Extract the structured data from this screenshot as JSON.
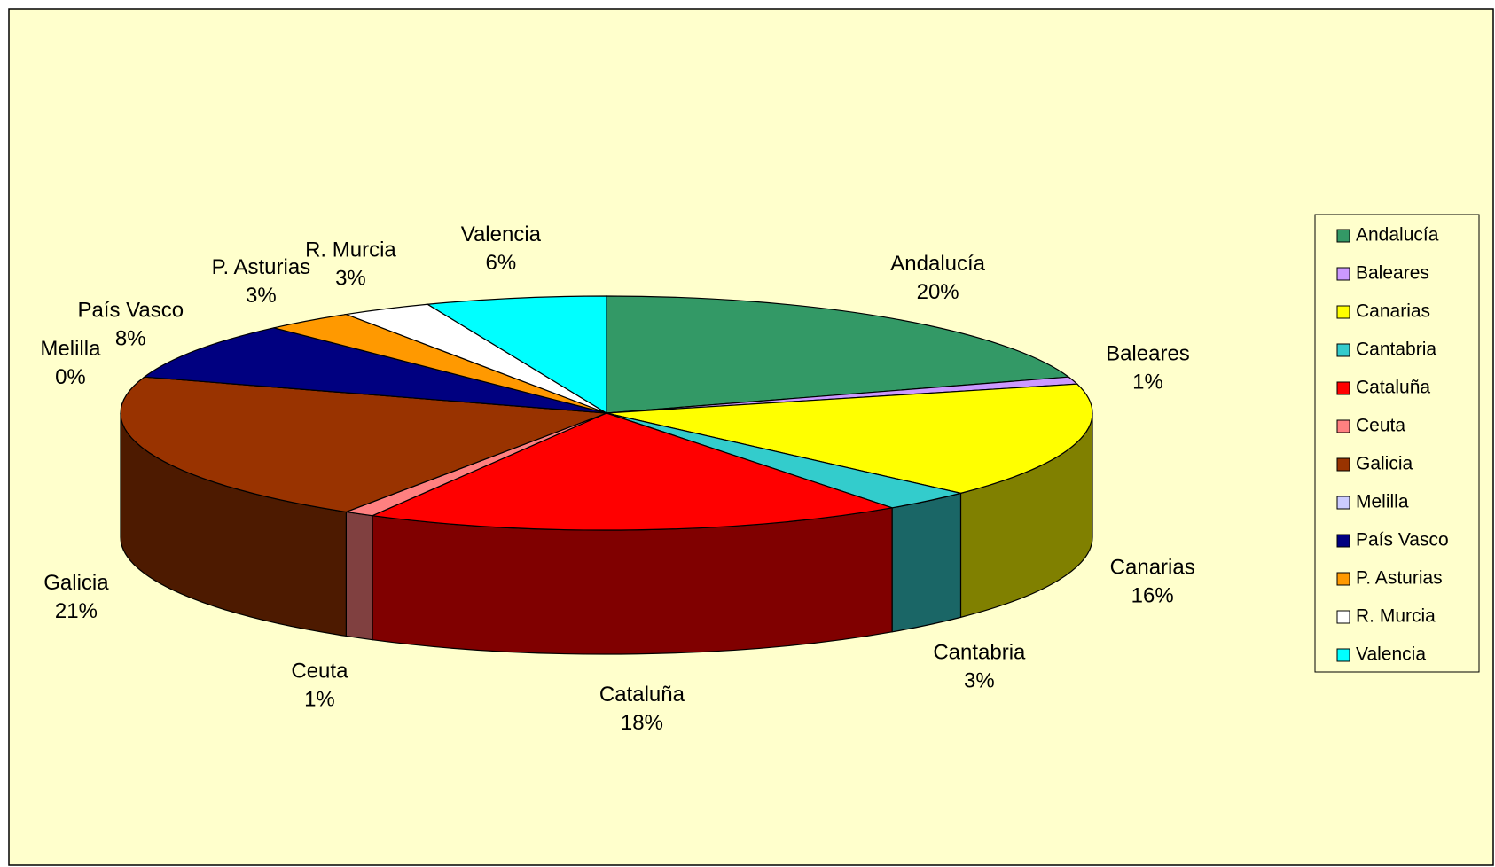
{
  "chart_data": {
    "type": "pie3d",
    "categories": [
      "Andalucía",
      "Baleares",
      "Canarias",
      "Cantabria",
      "Cataluña",
      "Ceuta",
      "Galicia",
      "Melilla",
      "País Vasco",
      "P. Asturias",
      "R. Murcia",
      "Valencia"
    ],
    "values": [
      20,
      1,
      16,
      3,
      18,
      1,
      21,
      0,
      8,
      3,
      3,
      6
    ],
    "value_labels": [
      "20%",
      "1%",
      "16%",
      "3%",
      "18%",
      "1%",
      "21%",
      "0%",
      "8%",
      "3%",
      "3%",
      "6%"
    ],
    "colors": [
      "#339966",
      "#cc99ff",
      "#ffff00",
      "#33cccc",
      "#ff0000",
      "#ff8080",
      "#993300",
      "#ccccff",
      "#000080",
      "#ff9900",
      "#ffffff",
      "#00ffff"
    ],
    "legend": "right"
  }
}
